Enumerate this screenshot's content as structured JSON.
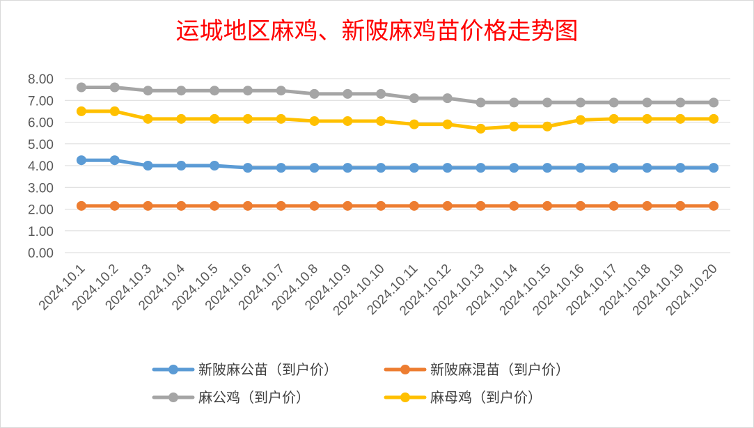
{
  "chart_data": {
    "type": "line",
    "title": "运城地区麻鸡、新陂麻鸡苗价格走势图",
    "xlabel": "",
    "ylabel": "",
    "ylim": [
      0,
      8
    ],
    "yticks": [
      "0.00",
      "1.00",
      "2.00",
      "3.00",
      "4.00",
      "5.00",
      "6.00",
      "7.00",
      "8.00"
    ],
    "grid": true,
    "legend_position": "bottom",
    "categories": [
      "2024.10.1",
      "2024.10.2",
      "2024.10.3",
      "2024.10.4",
      "2024.10.5",
      "2024.10.6",
      "2024.10.7",
      "2024.10.8",
      "2024.10.9",
      "2024.10.10",
      "2024.10.11",
      "2024.10.12",
      "2024.10.13",
      "2024.10.14",
      "2024.10.15",
      "2024.10.16",
      "2024.10.17",
      "2024.10.18",
      "2024.10.19",
      "2024.10.20"
    ],
    "series": [
      {
        "name": "新陂麻公苗（到户价）",
        "color": "#5b9bd5",
        "values": [
          4.25,
          4.25,
          4.0,
          4.0,
          4.0,
          3.9,
          3.9,
          3.9,
          3.9,
          3.9,
          3.9,
          3.9,
          3.9,
          3.9,
          3.9,
          3.9,
          3.9,
          3.9,
          3.9,
          3.9
        ]
      },
      {
        "name": "新陂麻混苗（到户价）",
        "color": "#ed7d31",
        "values": [
          2.15,
          2.15,
          2.15,
          2.15,
          2.15,
          2.15,
          2.15,
          2.15,
          2.15,
          2.15,
          2.15,
          2.15,
          2.15,
          2.15,
          2.15,
          2.15,
          2.15,
          2.15,
          2.15,
          2.15
        ]
      },
      {
        "name": "麻公鸡（到户价）",
        "color": "#a5a5a5",
        "values": [
          7.6,
          7.6,
          7.45,
          7.45,
          7.45,
          7.45,
          7.45,
          7.3,
          7.3,
          7.3,
          7.1,
          7.1,
          6.9,
          6.9,
          6.9,
          6.9,
          6.9,
          6.9,
          6.9,
          6.9
        ]
      },
      {
        "name": "麻母鸡（到户价）",
        "color": "#ffc000",
        "values": [
          6.5,
          6.5,
          6.15,
          6.15,
          6.15,
          6.15,
          6.15,
          6.05,
          6.05,
          6.05,
          5.9,
          5.9,
          5.7,
          5.8,
          5.8,
          6.1,
          6.15,
          6.15,
          6.15,
          6.15
        ]
      }
    ]
  }
}
